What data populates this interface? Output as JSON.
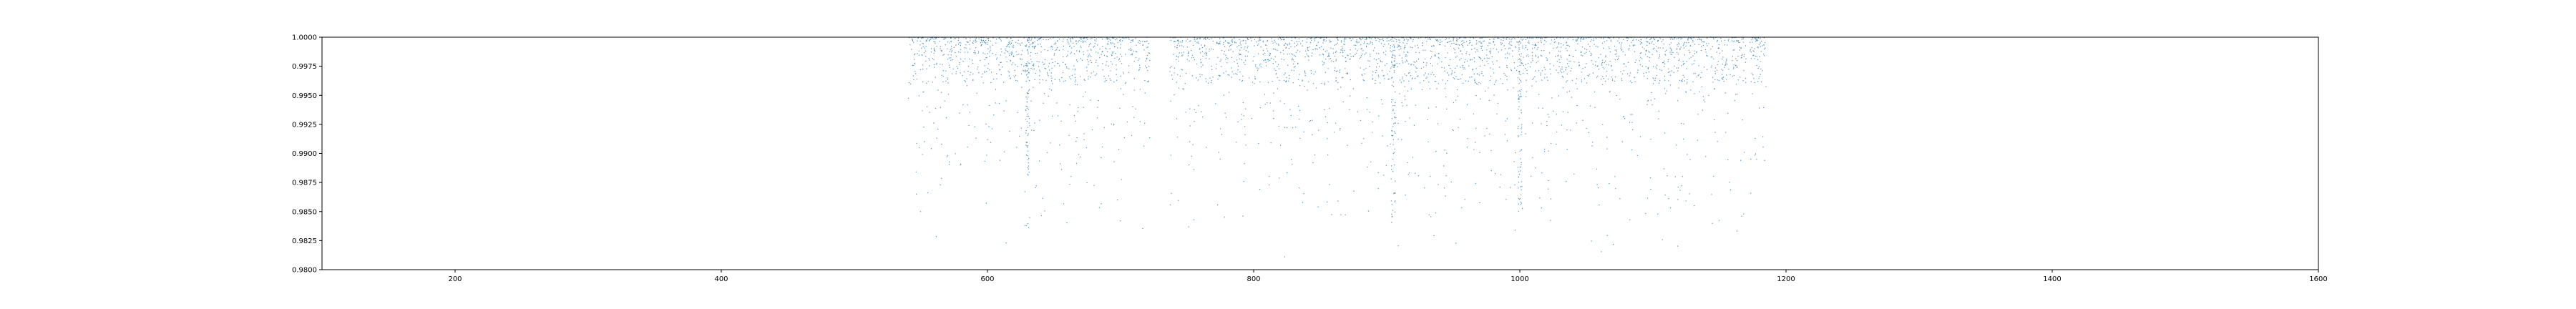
{
  "chart_data": {
    "type": "scatter",
    "title": "",
    "xlabel": "",
    "ylabel": "",
    "xlim": [
      100,
      1600
    ],
    "ylim": [
      0.98,
      1.0
    ],
    "x_ticks": [
      200,
      400,
      600,
      800,
      1000,
      1200,
      1400,
      1600
    ],
    "x_tick_labels": [
      "200",
      "400",
      "600",
      "800",
      "1000",
      "1200",
      "1400",
      "1600"
    ],
    "y_ticks": [
      0.98,
      0.9825,
      0.985,
      0.9875,
      0.99,
      0.9925,
      0.995,
      0.9975,
      1.0
    ],
    "y_tick_labels": [
      "0.9800",
      "0.9825",
      "0.9850",
      "0.9875",
      "0.9900",
      "0.9925",
      "0.9950",
      "0.9975",
      "1.0000"
    ],
    "grid": false,
    "legend": "none",
    "series": [
      {
        "marker_color": "#1f77b4",
        "x_range": [
          540,
          1185
        ],
        "gaps": [
          [
            722,
            737
          ],
          [
            1170,
            1173
          ]
        ],
        "typical_y_range": [
          0.996,
          1.0
        ],
        "outlier_y_range": [
          0.98,
          0.996
        ],
        "dip_regions": [
          {
            "x": 630,
            "y_min": 0.9875
          },
          {
            "x": 905,
            "y_min": 0.984
          },
          {
            "x": 1000,
            "y_min": 0.985
          }
        ]
      }
    ]
  }
}
